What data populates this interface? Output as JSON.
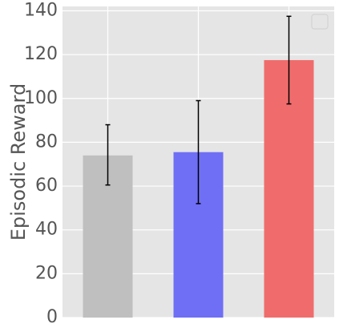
{
  "chart_data": {
    "type": "bar",
    "title": "",
    "xlabel": "",
    "ylabel": "Episodic Reward",
    "ylim": [
      0,
      142
    ],
    "yticks": [
      0,
      20,
      40,
      60,
      80,
      100,
      120,
      140
    ],
    "grid": true,
    "legend": "top-right",
    "series": [
      {
        "value": 74,
        "error_low": 60.5,
        "error_high": 88,
        "color": "#bfbfbf"
      },
      {
        "value": 75.5,
        "error_low": 52,
        "error_high": 99,
        "color": "#6f6ff5"
      },
      {
        "value": 117.5,
        "error_low": 97.5,
        "error_high": 137.5,
        "color": "#f06c6c"
      }
    ],
    "plot_background": "#e5e5e5",
    "grid_color": "#ffffff"
  }
}
